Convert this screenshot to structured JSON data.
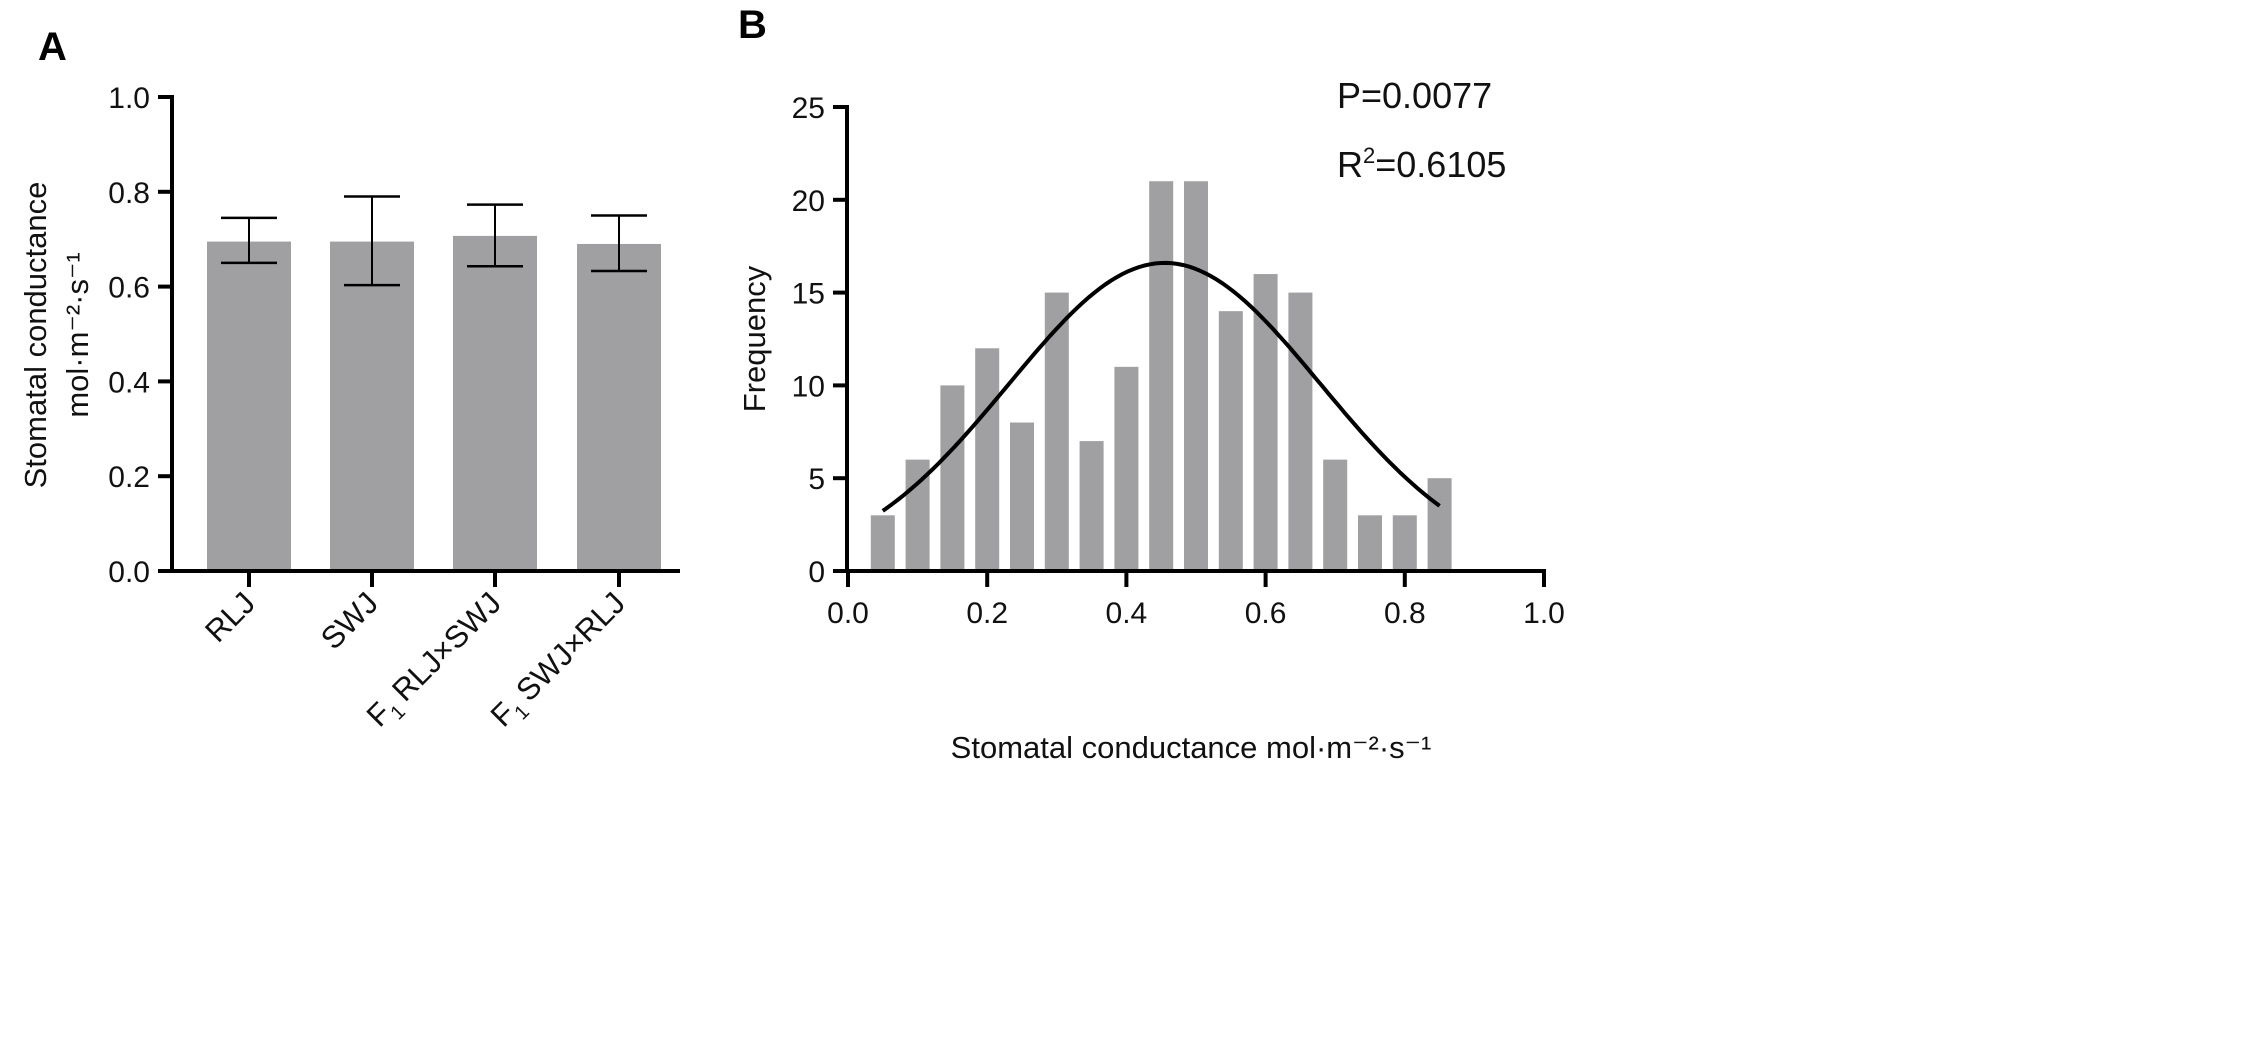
{
  "colors": {
    "bar": "#a0a0a3",
    "axis": "#000000",
    "curve": "#000000"
  },
  "chart_data": [
    {
      "panel": "A",
      "type": "bar",
      "categories": [
        {
          "prefix": "",
          "sub": "",
          "label": "RLJ"
        },
        {
          "prefix": "",
          "sub": "",
          "label": "SWJ"
        },
        {
          "prefix": "F",
          "sub": "1",
          "label": "RLJ×SWJ"
        },
        {
          "prefix": "F",
          "sub": "1",
          "label": "SWJ×RLJ"
        }
      ],
      "values": [
        0.695,
        0.695,
        0.707,
        0.69
      ],
      "error_low": [
        0.65,
        0.603,
        0.643,
        0.633
      ],
      "error_high": [
        0.745,
        0.79,
        0.773,
        0.75
      ],
      "ylabel_line1": "Stomatal conductance",
      "ylabel_line2": "mol·m⁻²·s⁻¹",
      "ylim": [
        0,
        1.0
      ],
      "yticks": [
        "0.0",
        "0.2",
        "0.4",
        "0.6",
        "0.8",
        "1.0"
      ]
    },
    {
      "panel": "B",
      "type": "bar",
      "subtype": "histogram with normal fit",
      "x": [
        0.05,
        0.1,
        0.15,
        0.2,
        0.25,
        0.3,
        0.35,
        0.4,
        0.45,
        0.5,
        0.55,
        0.6,
        0.65,
        0.7,
        0.75,
        0.8,
        0.85
      ],
      "values": [
        3,
        6,
        10,
        12,
        8,
        15,
        7,
        11,
        21,
        21,
        14,
        16,
        15,
        6,
        3,
        3,
        5
      ],
      "fit": {
        "type": "gaussian",
        "amplitude": 16.6,
        "mean": 0.455,
        "sd": 0.224,
        "x_range": [
          0.05,
          0.85
        ]
      },
      "xlabel": "Stomatal conductance mol·m⁻²·s⁻¹",
      "ylabel": "Frequency",
      "xlim": [
        0,
        1.0
      ],
      "ylim": [
        0,
        25
      ],
      "xticks": [
        "0.0",
        "0.2",
        "0.4",
        "0.6",
        "0.8",
        "1.0"
      ],
      "yticks": [
        "0",
        "5",
        "10",
        "15",
        "20",
        "25"
      ],
      "annotations": {
        "p_value": "P=0.0077",
        "r2_prefix": "R",
        "r2_sup": "2",
        "r2_value": "=0.6105"
      }
    }
  ]
}
